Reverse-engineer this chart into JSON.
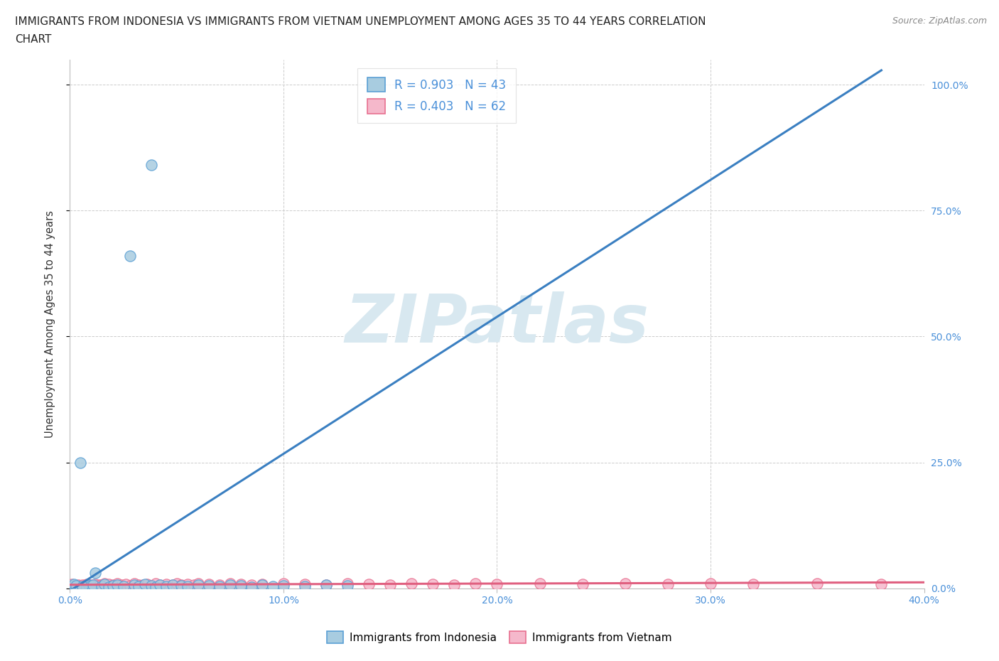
{
  "title_line1": "IMMIGRANTS FROM INDONESIA VS IMMIGRANTS FROM VIETNAM UNEMPLOYMENT AMONG AGES 35 TO 44 YEARS CORRELATION",
  "title_line2": "CHART",
  "source": "Source: ZipAtlas.com",
  "ylabel": "Unemployment Among Ages 35 to 44 years",
  "xlim": [
    0.0,
    0.4
  ],
  "ylim": [
    0.0,
    1.05
  ],
  "xticklabels": [
    "0.0%",
    "10.0%",
    "20.0%",
    "30.0%",
    "40.0%"
  ],
  "xticks": [
    0.0,
    0.1,
    0.2,
    0.3,
    0.4
  ],
  "yticks": [
    0.0,
    0.25,
    0.5,
    0.75,
    1.0
  ],
  "yticklabels_right": [
    "0.0%",
    "25.0%",
    "50.0%",
    "75.0%",
    "100.0%"
  ],
  "legend_indonesia": "Immigrants from Indonesia",
  "legend_vietnam": "Immigrants from Vietnam",
  "R_indonesia": 0.903,
  "N_indonesia": 43,
  "R_vietnam": 0.403,
  "N_vietnam": 62,
  "color_indonesia": "#a8cce0",
  "color_vietnam": "#f5b8cb",
  "edge_color_indonesia": "#5a9fd4",
  "edge_color_vietnam": "#e87090",
  "line_color_indonesia": "#3a7fc1",
  "line_color_vietnam": "#e06080",
  "watermark_color": "#d8e8f0",
  "watermark_text": "ZIPatlas",
  "title_fontsize": 11,
  "axis_label_fontsize": 10.5,
  "tick_fontsize": 10,
  "legend_fontsize": 12,
  "indonesia_points": [
    [
      0.001,
      0.003
    ],
    [
      0.002,
      0.005
    ],
    [
      0.003,
      0.002
    ],
    [
      0.004,
      0.004
    ],
    [
      0.002,
      0.008
    ],
    [
      0.008,
      0.003
    ],
    [
      0.009,
      0.006
    ],
    [
      0.01,
      0.005
    ],
    [
      0.011,
      0.007
    ],
    [
      0.015,
      0.004
    ],
    [
      0.016,
      0.008
    ],
    [
      0.018,
      0.003
    ],
    [
      0.02,
      0.005
    ],
    [
      0.022,
      0.007
    ],
    [
      0.025,
      0.004
    ],
    [
      0.03,
      0.006
    ],
    [
      0.032,
      0.004
    ],
    [
      0.035,
      0.008
    ],
    [
      0.038,
      0.005
    ],
    [
      0.04,
      0.003
    ],
    [
      0.042,
      0.007
    ],
    [
      0.045,
      0.004
    ],
    [
      0.048,
      0.006
    ],
    [
      0.052,
      0.005
    ],
    [
      0.055,
      0.004
    ],
    [
      0.06,
      0.006
    ],
    [
      0.065,
      0.005
    ],
    [
      0.07,
      0.004
    ],
    [
      0.075,
      0.007
    ],
    [
      0.08,
      0.005
    ],
    [
      0.085,
      0.003
    ],
    [
      0.09,
      0.006
    ],
    [
      0.095,
      0.004
    ],
    [
      0.1,
      0.005
    ],
    [
      0.11,
      0.004
    ],
    [
      0.12,
      0.006
    ],
    [
      0.13,
      0.005
    ],
    [
      0.003,
      0.005
    ],
    [
      0.006,
      0.004
    ],
    [
      0.028,
      0.66
    ],
    [
      0.038,
      0.84
    ],
    [
      0.005,
      0.25
    ],
    [
      0.012,
      0.03
    ]
  ],
  "vietnam_points": [
    [
      0.001,
      0.008
    ],
    [
      0.002,
      0.005
    ],
    [
      0.003,
      0.004
    ],
    [
      0.004,
      0.007
    ],
    [
      0.005,
      0.003
    ],
    [
      0.006,
      0.006
    ],
    [
      0.007,
      0.005
    ],
    [
      0.008,
      0.008
    ],
    [
      0.009,
      0.004
    ],
    [
      0.01,
      0.007
    ],
    [
      0.011,
      0.005
    ],
    [
      0.012,
      0.008
    ],
    [
      0.013,
      0.004
    ],
    [
      0.014,
      0.007
    ],
    [
      0.015,
      0.006
    ],
    [
      0.016,
      0.009
    ],
    [
      0.017,
      0.005
    ],
    [
      0.018,
      0.008
    ],
    [
      0.02,
      0.007
    ],
    [
      0.022,
      0.009
    ],
    [
      0.024,
      0.006
    ],
    [
      0.026,
      0.008
    ],
    [
      0.028,
      0.005
    ],
    [
      0.03,
      0.009
    ],
    [
      0.032,
      0.007
    ],
    [
      0.034,
      0.006
    ],
    [
      0.036,
      0.008
    ],
    [
      0.038,
      0.005
    ],
    [
      0.04,
      0.009
    ],
    [
      0.042,
      0.007
    ],
    [
      0.045,
      0.008
    ],
    [
      0.048,
      0.006
    ],
    [
      0.05,
      0.009
    ],
    [
      0.052,
      0.007
    ],
    [
      0.055,
      0.008
    ],
    [
      0.058,
      0.006
    ],
    [
      0.06,
      0.009
    ],
    [
      0.065,
      0.008
    ],
    [
      0.07,
      0.007
    ],
    [
      0.075,
      0.009
    ],
    [
      0.08,
      0.008
    ],
    [
      0.085,
      0.007
    ],
    [
      0.09,
      0.008
    ],
    [
      0.1,
      0.009
    ],
    [
      0.11,
      0.008
    ],
    [
      0.12,
      0.007
    ],
    [
      0.13,
      0.009
    ],
    [
      0.14,
      0.008
    ],
    [
      0.15,
      0.007
    ],
    [
      0.16,
      0.009
    ],
    [
      0.17,
      0.008
    ],
    [
      0.18,
      0.007
    ],
    [
      0.19,
      0.009
    ],
    [
      0.2,
      0.008
    ],
    [
      0.22,
      0.009
    ],
    [
      0.24,
      0.008
    ],
    [
      0.26,
      0.009
    ],
    [
      0.28,
      0.008
    ],
    [
      0.3,
      0.009
    ],
    [
      0.32,
      0.008
    ],
    [
      0.35,
      0.009
    ],
    [
      0.38,
      0.008
    ]
  ],
  "indo_line_x": [
    0.0,
    0.38
  ],
  "indo_line_slope": 2.72,
  "indo_line_intercept": -0.005,
  "viet_line_x": [
    0.0,
    0.4
  ],
  "viet_line_slope": 0.012,
  "viet_line_intercept": 0.007
}
